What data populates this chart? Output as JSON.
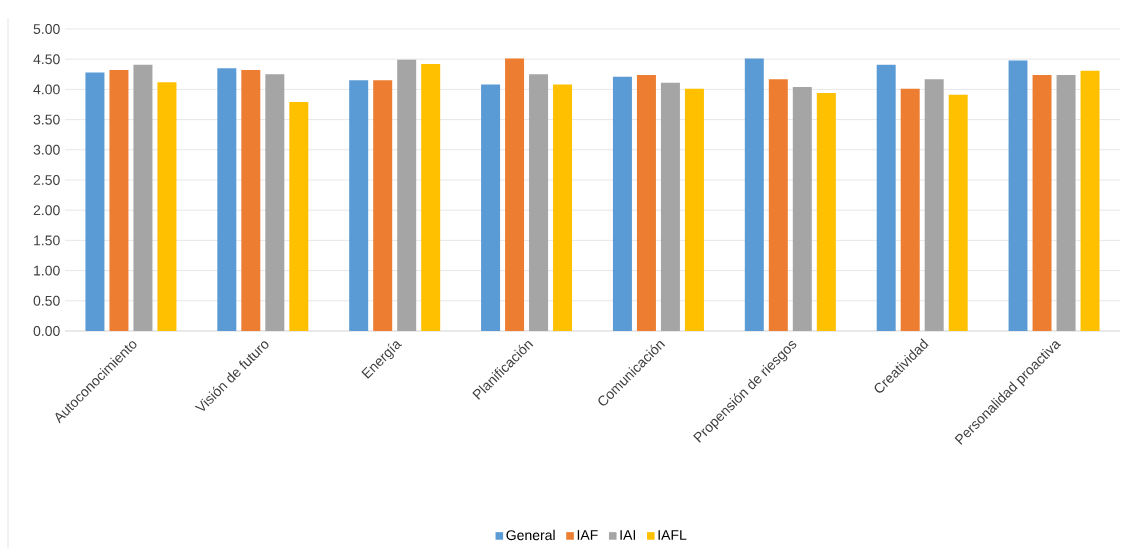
{
  "chart_data": {
    "type": "bar",
    "categories": [
      "Autoconocimiento",
      "Visión de futuro",
      "Energía",
      "Planificación",
      "Comunicación",
      "Propensión de riesgos",
      "Creatividad",
      "Personalidad proactiva"
    ],
    "series": [
      {
        "name": "General",
        "color": "#5b9bd5",
        "values": [
          4.28,
          4.35,
          4.15,
          4.08,
          4.21,
          4.51,
          4.41,
          4.48
        ]
      },
      {
        "name": "IAF",
        "color": "#ed7d31",
        "values": [
          4.32,
          4.32,
          4.15,
          4.51,
          4.24,
          4.17,
          4.01,
          4.24
        ]
      },
      {
        "name": "IAI",
        "color": "#a5a5a5",
        "values": [
          4.41,
          4.25,
          4.49,
          4.25,
          4.11,
          4.04,
          4.17,
          4.24
        ]
      },
      {
        "name": "IAFL",
        "color": "#ffc000",
        "values": [
          4.12,
          3.79,
          4.42,
          4.08,
          4.01,
          3.94,
          3.91,
          4.31
        ]
      }
    ],
    "ylim": [
      0,
      5
    ],
    "yticks": [
      {
        "value": 0,
        "label": "0.00"
      },
      {
        "value": 0.5,
        "label": "0.50"
      },
      {
        "value": 1,
        "label": "1.00"
      },
      {
        "value": 1.5,
        "label": "1.50"
      },
      {
        "value": 2,
        "label": "2.00"
      },
      {
        "value": 2.5,
        "label": "2.50"
      },
      {
        "value": 3,
        "label": "3.00"
      },
      {
        "value": 3.5,
        "label": "3.50"
      },
      {
        "value": 4,
        "label": "4.00"
      },
      {
        "value": 4.5,
        "label": "4.50"
      },
      {
        "value": 5,
        "label": "5.00"
      }
    ],
    "grid": "y",
    "legend": "bottom"
  }
}
